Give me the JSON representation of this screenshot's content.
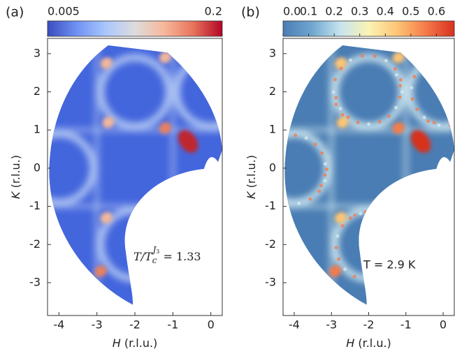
{
  "chart_data": [
    {
      "type": "heatmap",
      "panel_label": "(a)",
      "xlabel_var": "H",
      "xlabel_unit": "(r.l.u.)",
      "ylabel_var": "K",
      "ylabel_unit": "(r.l.u.)",
      "xlim": [
        -4.3,
        0.3
      ],
      "xticks": [
        -4,
        -3,
        -2,
        -1,
        0
      ],
      "ylim": [
        -3.86,
        3.4
      ],
      "yticks": [
        -3,
        -2,
        -1,
        0,
        1,
        2,
        3
      ],
      "colorbar": {
        "clim": [
          0.005,
          0.2
        ],
        "ticks": [
          0.005,
          0.2
        ],
        "log": true,
        "colormap": [
          "#3b4cc0",
          "#6f92f3",
          "#aac7fd",
          "#dddcdc",
          "#f7b89c",
          "#e7745b",
          "#b40426"
        ]
      },
      "annotation": {
        "text": "T/T",
        "subscript": "c",
        "superscript": "J",
        "superscript_sub": "3",
        "value_text": " = 1.33"
      }
    },
    {
      "type": "heatmap",
      "panel_label": "(b)",
      "xlabel_var": "H",
      "xlabel_unit": "(r.l.u.)",
      "ylabel_var": "K",
      "ylabel_unit": "(r.l.u.)",
      "xlim": [
        -4.3,
        0.3
      ],
      "xticks": [
        -4,
        -3,
        -2,
        -1,
        0
      ],
      "ylim": [
        -3.86,
        3.4
      ],
      "yticks": [
        -3,
        -2,
        -1,
        0,
        1,
        2,
        3
      ],
      "colorbar": {
        "clim": [
          0,
          0.67
        ],
        "ticks": [
          {
            "value": 0,
            "label": "0.0"
          },
          0.1,
          0.2,
          0.3,
          0.4,
          0.5,
          0.6
        ],
        "log": false,
        "colormap": [
          "#4a7db4",
          "#6fa6cf",
          "#c6e4ef",
          "#fbf3b4",
          "#fdc574",
          "#f57b4a",
          "#d7301f"
        ]
      },
      "annotation": {
        "text": "T = 2.9 K"
      }
    }
  ]
}
